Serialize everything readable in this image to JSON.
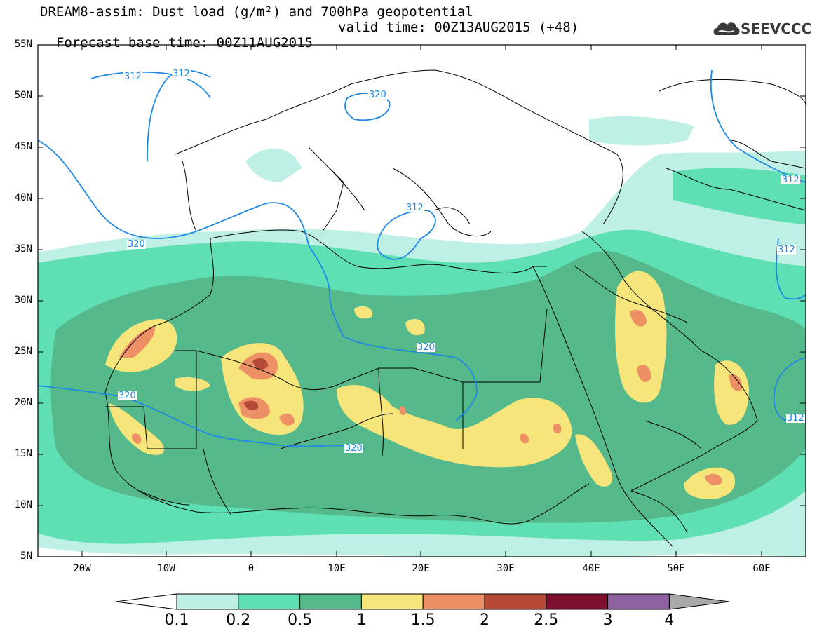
{
  "header": {
    "title_line": "DREAM8-assim: Dust load (g/m²) and 700hPa geopotential",
    "base_time": "Forecast base time: 00Z11AUG2015",
    "valid_time": "valid time: 00Z13AUG2015 (+48)"
  },
  "logo": {
    "text": "SEEVCCC",
    "icon": "cloud-logo-icon"
  },
  "axes": {
    "lat_labels": [
      "55N",
      "50N",
      "45N",
      "40N",
      "35N",
      "30N",
      "25N",
      "20N",
      "15N",
      "10N",
      "5N"
    ],
    "lon_labels": [
      "20W",
      "10W",
      "0",
      "10E",
      "20E",
      "30E",
      "40E",
      "50E",
      "60E"
    ]
  },
  "contour_labels": [
    "312",
    "312",
    "320",
    "312",
    "320",
    "320",
    "320",
    "320",
    "312",
    "312",
    "312"
  ],
  "colorbar": {
    "levels": [
      "0.1",
      "0.2",
      "0.5",
      "1",
      "1.5",
      "2",
      "2.5",
      "3",
      "4"
    ],
    "colors": [
      "#bff0e6",
      "#5fe0b4",
      "#55b98b",
      "#f5e57a",
      "#ee9066",
      "#b44a35",
      "#7e0f2e",
      "#8e62a0",
      "#a9a9a9"
    ]
  },
  "map_colors": {
    "land": "#ffffff",
    "dust_0_1": "#bff0e6",
    "dust_0_2": "#5fe0b4",
    "dust_0_5": "#55b98b",
    "dust_1": "#f5e57a",
    "dust_1_5": "#ee9066",
    "dust_2": "#b44a35",
    "geopotential_line": "#1e88e5"
  }
}
